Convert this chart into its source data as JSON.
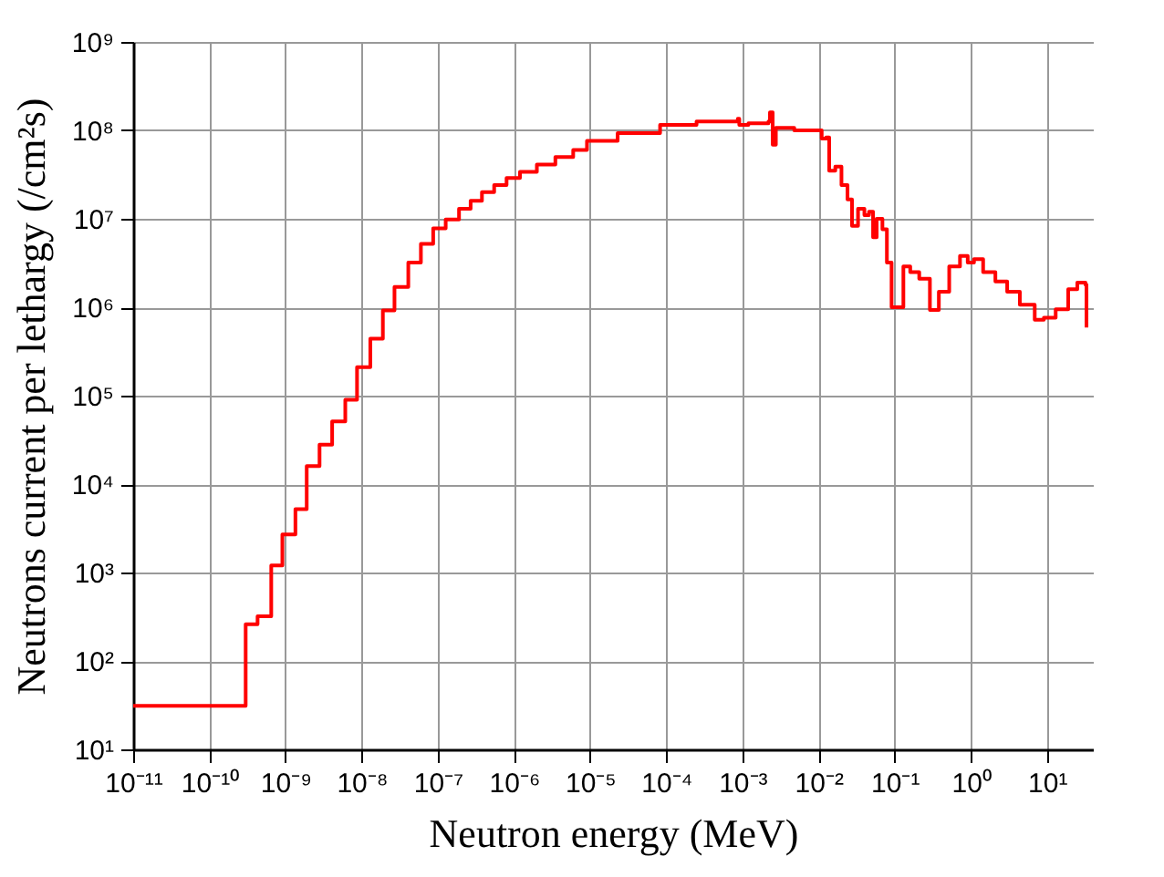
{
  "chart_data": {
    "type": "step",
    "xlabel": "Neutron energy (MeV)",
    "ylabel": "Neutrons current per lethargy (/cm²s)",
    "log": "xy",
    "grid": true,
    "marker": "none",
    "line_style": "solid",
    "xlim": [
      1e-11,
      40
    ],
    "ylim": [
      10,
      1000000000.0
    ],
    "xticks": [
      {
        "value": 1e-11,
        "label": "10⁻¹¹"
      },
      {
        "value": 1e-10,
        "label": "10⁻¹⁰"
      },
      {
        "value": 1e-09,
        "label": "10⁻⁹"
      },
      {
        "value": 1e-08,
        "label": "10⁻⁸"
      },
      {
        "value": 1e-07,
        "label": "10⁻⁷"
      },
      {
        "value": 1e-06,
        "label": "10⁻⁶"
      },
      {
        "value": 1e-05,
        "label": "10⁻⁵"
      },
      {
        "value": 0.0001,
        "label": "10⁻⁴"
      },
      {
        "value": 0.001,
        "label": "10⁻³"
      },
      {
        "value": 0.01,
        "label": "10⁻²"
      },
      {
        "value": 0.1,
        "label": "10⁻¹"
      },
      {
        "value": 1,
        "label": "10⁰"
      },
      {
        "value": 10,
        "label": "10¹"
      }
    ],
    "yticks": [
      {
        "value": 10,
        "label": "10¹"
      },
      {
        "value": 100,
        "label": "10²"
      },
      {
        "value": 1000,
        "label": "10³"
      },
      {
        "value": 10000,
        "label": "10⁴"
      },
      {
        "value": 100000,
        "label": "10⁵"
      },
      {
        "value": 1000000,
        "label": "10⁶"
      },
      {
        "value": 10000000,
        "label": "10⁷"
      },
      {
        "value": 100000000,
        "label": "10⁸"
      },
      {
        "value": 1000000000,
        "label": "10⁹"
      }
    ],
    "series": [
      {
        "color": "#ff0000",
        "x": [
          1e-11,
          3e-10,
          4.3e-10,
          6.5e-10,
          9.1e-10,
          1.35e-09,
          1.9e-09,
          2.8e-09,
          4.1e-09,
          6.1e-09,
          8.7e-09,
          1.3e-08,
          1.9e-08,
          2.7e-08,
          4.1e-08,
          6e-08,
          8.7e-08,
          1.27e-07,
          1.9e-07,
          2.7e-07,
          3.8e-07,
          5.5e-07,
          8e-07,
          1.2e-06,
          2e-06,
          3.5e-06,
          6e-06,
          9.1e-06,
          2.3e-05,
          8.3e-05,
          0.00025,
          0.00087,
          0.00091,
          0.0012,
          0.0022,
          0.0023,
          0.0025,
          0.00275,
          0.0048,
          0.011,
          0.0126,
          0.0138,
          0.0166,
          0.02,
          0.024,
          0.0275,
          0.033,
          0.04,
          0.046,
          0.052,
          0.058,
          0.069,
          0.079,
          0.091,
          0.11,
          0.13,
          0.16,
          0.21,
          0.29,
          0.38,
          0.52,
          0.72,
          0.91,
          1.1,
          1.45,
          2.1,
          3.0,
          4.4,
          6.9,
          9.1,
          13,
          19,
          25,
          32,
          33
        ],
        "values": [
          31,
          260,
          320,
          1200,
          2700,
          5200,
          16000,
          28000,
          51000,
          90000,
          210000,
          440000,
          920000,
          1700000,
          3200000,
          5200000,
          7800000,
          9800000,
          13000000.0,
          16000000.0,
          20000000.0,
          24000000.0,
          29000000.0,
          34000000.0,
          41000000.0,
          50000000.0,
          60000000.0,
          76000000.0,
          93000000.0,
          115000000.0,
          126000000.0,
          135000000.0,
          115000000.0,
          120000000.0,
          126000000.0,
          160000000.0,
          69000000.0,
          107000000.0,
          100000000.0,
          81000000.0,
          83000000.0,
          35000000.0,
          39000000.0,
          24000000.0,
          16600000.0,
          8300000.0,
          13000000.0,
          11000000.0,
          12000000.0,
          6200000.0,
          10000000.0,
          7600000.0,
          3200000.0,
          1000000.0,
          1000000.0,
          2900000.0,
          2500000.0,
          2100000.0,
          930000.0,
          1500000.0,
          2900000.0,
          3800000.0,
          3200000.0,
          3500000.0,
          2500000.0,
          1950000.0,
          1500000.0,
          1070000.0,
          720000.0,
          760000.0,
          950000.0,
          1600000.0,
          1900000.0,
          1800000.0,
          590000.0
        ]
      }
    ]
  }
}
